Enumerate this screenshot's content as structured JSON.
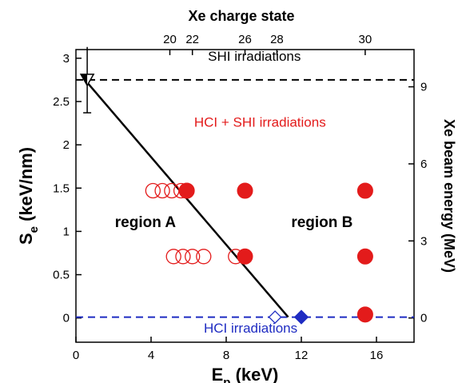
{
  "chart_data": {
    "type": "scatter",
    "title": "",
    "xlabel": "E",
    "xlabel_sub": "p",
    "xlabel_unit": " (keV)",
    "ylabel": "S",
    "ylabel_sub": "e",
    "ylabel_unit": " (keV/nm)",
    "top_xlabel": "Xe charge state",
    "right_ylabel": "Xe beam energy (MeV)",
    "xlim": [
      0,
      18
    ],
    "ylim": [
      -0.28,
      3.1
    ],
    "x_ticks": [
      0,
      4,
      8,
      12,
      16
    ],
    "y_ticks": [
      0,
      0.5,
      1,
      1.5,
      2,
      2.5,
      3
    ],
    "x_tick_labels": [
      "0",
      "4",
      "8",
      "12",
      "16"
    ],
    "y_tick_labels": [
      "0",
      "0.5",
      "1",
      "1.5",
      "2",
      "2.5",
      "3"
    ],
    "top_ticks": [
      {
        "x": 5.0,
        "label": "20"
      },
      {
        "x": 6.2,
        "label": "22"
      },
      {
        "x": 9.0,
        "label": "26"
      },
      {
        "x": 10.7,
        "label": "28"
      },
      {
        "x": 15.4,
        "label": "30"
      }
    ],
    "right_ticks": [
      {
        "y": 0,
        "label": "0"
      },
      {
        "y": 0.89,
        "label": "3"
      },
      {
        "y": 1.78,
        "label": "6"
      },
      {
        "y": 2.67,
        "label": "9"
      }
    ],
    "series": [
      {
        "marker": "open-circle",
        "color": "#e31b1b",
        "points": [
          [
            4.1,
            1.47
          ],
          [
            4.6,
            1.47
          ],
          [
            5.1,
            1.47
          ],
          [
            5.6,
            1.47
          ],
          [
            5.2,
            0.71
          ],
          [
            5.7,
            0.71
          ],
          [
            6.2,
            0.71
          ],
          [
            6.8,
            0.71
          ],
          [
            8.5,
            0.71
          ]
        ]
      },
      {
        "marker": "filled-circle",
        "color": "#e31b1b",
        "points": [
          [
            5.9,
            1.47
          ],
          [
            9.0,
            1.47
          ],
          [
            15.4,
            1.47
          ],
          [
            9.0,
            0.71
          ],
          [
            15.4,
            0.71
          ],
          [
            15.4,
            0.04
          ]
        ]
      },
      {
        "marker": "open-diamond",
        "color": "#1f2cc2",
        "points": [
          [
            10.6,
            0.01
          ]
        ]
      },
      {
        "marker": "filled-diamond",
        "color": "#1f2cc2",
        "points": [
          [
            12.0,
            0.01
          ]
        ]
      },
      {
        "marker": "half-filled-triangle",
        "color": "#000000",
        "points": [
          [
            0.6,
            2.75
          ]
        ],
        "yerr": [
          0.38
        ]
      }
    ],
    "reference_lines": [
      {
        "orientation": "horizontal",
        "y": 2.75,
        "style": "dashed",
        "color": "#000000"
      },
      {
        "orientation": "horizontal",
        "y": 0.01,
        "style": "dashed",
        "color": "#1f2cc2"
      }
    ],
    "boundary_line": {
      "x": [
        0.6,
        11.3
      ],
      "y": [
        2.72,
        0.01
      ],
      "color": "#000000"
    },
    "annotations": [
      {
        "text": "SHI irradiations",
        "x": 9.5,
        "y": 2.97,
        "color": "#000000"
      },
      {
        "text": "HCI + SHI irradiations",
        "x": 9.8,
        "y": 2.21,
        "color": "#e31b1b"
      },
      {
        "text": "region A",
        "x": 3.7,
        "y": 1.05,
        "color": "#000000",
        "bold": true
      },
      {
        "text": "region B",
        "x": 13.1,
        "y": 1.05,
        "color": "#000000",
        "bold": true
      },
      {
        "text": "HCI irradiations",
        "x": 9.3,
        "y": -0.17,
        "color": "#1f2cc2"
      }
    ],
    "grid": false
  }
}
